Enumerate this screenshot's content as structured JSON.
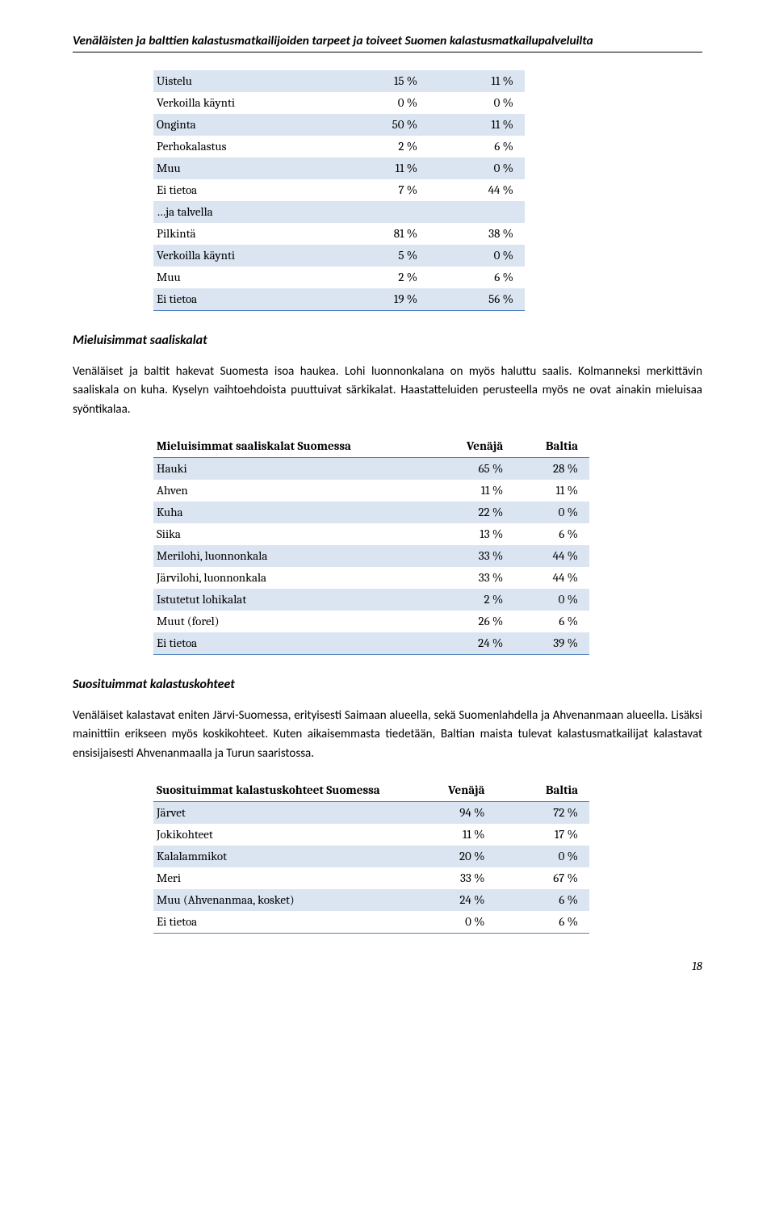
{
  "header": {
    "title": "Venäläisten ja balttien kalastusmatkailijoiden tarpeet ja toiveet Suomen kalastusmatkailupalveluilta"
  },
  "table1": {
    "rows": [
      {
        "label": "Uistelu",
        "v": "15 %",
        "b": "11 %",
        "striped": true
      },
      {
        "label": "Verkoilla käynti",
        "v": "0 %",
        "b": "0 %",
        "striped": false
      },
      {
        "label": "Onginta",
        "v": "50 %",
        "b": "11 %",
        "striped": true
      },
      {
        "label": "Perhokalastus",
        "v": "2 %",
        "b": "6 %",
        "striped": false
      },
      {
        "label": "Muu",
        "v": "11 %",
        "b": "0 %",
        "striped": true
      },
      {
        "label": "Ei tietoa",
        "v": "7 %",
        "b": "44 %",
        "striped": false
      },
      {
        "label": "…ja talvella",
        "v": "",
        "b": "",
        "striped": true
      },
      {
        "label": "Pilkintä",
        "v": "81 %",
        "b": "38 %",
        "striped": false
      },
      {
        "label": "Verkoilla käynti",
        "v": "5 %",
        "b": "0 %",
        "striped": true
      },
      {
        "label": "Muu",
        "v": "2 %",
        "b": "6 %",
        "striped": false
      },
      {
        "label": "Ei tietoa",
        "v": "19 %",
        "b": "56 %",
        "striped": true
      }
    ]
  },
  "section1": {
    "heading": "Mieluisimmat saaliskalat",
    "para": "Venäläiset ja baltit hakevat Suomesta isoa haukea. Lohi luonnonkalana on myös haluttu saalis. Kolmanneksi merkittävin saaliskala on kuha. Kyselyn vaihtoehdoista puuttuivat särkikalat. Haastatteluiden perusteella myös ne ovat ainakin mieluisaa syöntikalaa."
  },
  "table2": {
    "header": {
      "c0": "Mieluisimmat saaliskalat Suomessa",
      "c1": "Venäjä",
      "c2": "Baltia"
    },
    "rows": [
      {
        "label": "Hauki",
        "v": "65 %",
        "b": "28 %",
        "striped": true
      },
      {
        "label": "Ahven",
        "v": "11 %",
        "b": "11 %",
        "striped": false
      },
      {
        "label": "Kuha",
        "v": "22 %",
        "b": "0 %",
        "striped": true
      },
      {
        "label": "Siika",
        "v": "13 %",
        "b": "6 %",
        "striped": false
      },
      {
        "label": "Merilohi, luonnonkala",
        "v": "33 %",
        "b": "44 %",
        "striped": true
      },
      {
        "label": "Järvilohi, luonnonkala",
        "v": "33 %",
        "b": "44 %",
        "striped": false
      },
      {
        "label": "Istutetut lohikalat",
        "v": "2 %",
        "b": "0 %",
        "striped": true
      },
      {
        "label": "Muut (forel)",
        "v": "26 %",
        "b": "6 %",
        "striped": false
      },
      {
        "label": "Ei tietoa",
        "v": "24 %",
        "b": "39 %",
        "striped": true
      }
    ]
  },
  "section2": {
    "heading": "Suosituimmat kalastuskohteet",
    "para": "Venäläiset kalastavat eniten Järvi-Suomessa, erityisesti Saimaan alueella, sekä Suomenlahdella ja Ahvenanmaan alueella. Lisäksi mainittiin erikseen myös koskikohteet. Kuten aikaisemmasta tiedetään, Baltian maista tulevat kalastusmatkailijat kalastavat ensisijaisesti Ahvenanmaalla ja Turun saaristossa."
  },
  "table3": {
    "header": {
      "c0": "Suosituimmat kalastuskohteet Suomessa",
      "c1": "Venäjä",
      "c2": "Baltia"
    },
    "rows": [
      {
        "label": "Järvet",
        "v": "94 %",
        "b": "72 %",
        "striped": true
      },
      {
        "label": "Jokikohteet",
        "v": "11 %",
        "b": "17 %",
        "striped": false
      },
      {
        "label": "Kalalammikot",
        "v": "20 %",
        "b": "0 %",
        "striped": true
      },
      {
        "label": "Meri",
        "v": "33 %",
        "b": "67 %",
        "striped": false
      },
      {
        "label": "Muu (Ahvenanmaa, kosket)",
        "v": "24 %",
        "b": "6 %",
        "striped": true
      },
      {
        "label": "Ei tietoa",
        "v": "0 %",
        "b": "6 %",
        "striped": false
      }
    ]
  },
  "page_number": "18"
}
